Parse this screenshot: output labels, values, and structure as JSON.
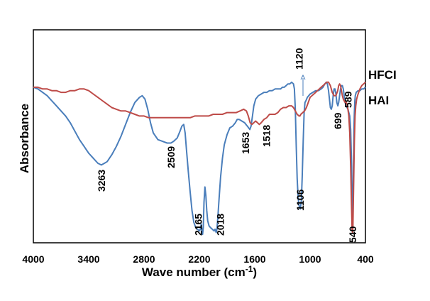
{
  "chart_data": {
    "type": "line",
    "title": "",
    "xlabel": "Wave number (cm",
    "xlabel_sup": "-1",
    "xlabel_close": ")",
    "ylabel": "Absorbance",
    "xlim": [
      4000,
      400
    ],
    "ylim": [
      0,
      1
    ],
    "x_reversed": true,
    "grid": false,
    "x_ticks": [
      4000,
      3400,
      2800,
      2200,
      1600,
      1000,
      400
    ],
    "x_tick_labels": [
      "4000",
      "3400",
      "2800",
      "2200",
      "1600",
      "1000",
      "400"
    ],
    "series": [
      {
        "name": "HFCI",
        "color": "#4a7ebb",
        "points": [
          [
            4000,
            0.87
          ],
          [
            3950,
            0.86
          ],
          [
            3900,
            0.84
          ],
          [
            3850,
            0.82
          ],
          [
            3800,
            0.79
          ],
          [
            3750,
            0.76
          ],
          [
            3700,
            0.73
          ],
          [
            3650,
            0.7
          ],
          [
            3600,
            0.66
          ],
          [
            3550,
            0.61
          ],
          [
            3500,
            0.56
          ],
          [
            3450,
            0.52
          ],
          [
            3400,
            0.48
          ],
          [
            3350,
            0.45
          ],
          [
            3300,
            0.42
          ],
          [
            3263,
            0.41
          ],
          [
            3230,
            0.42
          ],
          [
            3200,
            0.43
          ],
          [
            3150,
            0.47
          ],
          [
            3100,
            0.52
          ],
          [
            3050,
            0.58
          ],
          [
            3000,
            0.65
          ],
          [
            2950,
            0.72
          ],
          [
            2900,
            0.78
          ],
          [
            2850,
            0.81
          ],
          [
            2820,
            0.82
          ],
          [
            2790,
            0.8
          ],
          [
            2760,
            0.74
          ],
          [
            2730,
            0.66
          ],
          [
            2700,
            0.6
          ],
          [
            2650,
            0.56
          ],
          [
            2600,
            0.55
          ],
          [
            2550,
            0.54
          ],
          [
            2509,
            0.54
          ],
          [
            2480,
            0.55
          ],
          [
            2440,
            0.57
          ],
          [
            2410,
            0.61
          ],
          [
            2390,
            0.64
          ],
          [
            2370,
            0.65
          ],
          [
            2355,
            0.6
          ],
          [
            2340,
            0.5
          ],
          [
            2320,
            0.37
          ],
          [
            2300,
            0.25
          ],
          [
            2280,
            0.14
          ],
          [
            2260,
            0.07
          ],
          [
            2240,
            0.04
          ],
          [
            2220,
            0.03
          ],
          [
            2200,
            0.02
          ],
          [
            2190,
            0.03
          ],
          [
            2180,
            0.06
          ],
          [
            2170,
            0.01
          ],
          [
            2165,
            0.0
          ],
          [
            2158,
            0.04
          ],
          [
            2150,
            0.19
          ],
          [
            2140,
            0.28
          ],
          [
            2130,
            0.23
          ],
          [
            2120,
            0.14
          ],
          [
            2110,
            0.08
          ],
          [
            2095,
            0.05
          ],
          [
            2080,
            0.04
          ],
          [
            2060,
            0.03
          ],
          [
            2040,
            0.02
          ],
          [
            2030,
            0.03
          ],
          [
            2018,
            0.01
          ],
          [
            2010,
            0.03
          ],
          [
            2000,
            0.1
          ],
          [
            1985,
            0.22
          ],
          [
            1970,
            0.34
          ],
          [
            1950,
            0.45
          ],
          [
            1930,
            0.53
          ],
          [
            1900,
            0.59
          ],
          [
            1870,
            0.63
          ],
          [
            1840,
            0.64
          ],
          [
            1810,
            0.66
          ],
          [
            1790,
            0.68
          ],
          [
            1770,
            0.68
          ],
          [
            1740,
            0.67
          ],
          [
            1710,
            0.66
          ],
          [
            1680,
            0.64
          ],
          [
            1653,
            0.62
          ],
          [
            1640,
            0.64
          ],
          [
            1625,
            0.7
          ],
          [
            1610,
            0.76
          ],
          [
            1590,
            0.8
          ],
          [
            1560,
            0.82
          ],
          [
            1530,
            0.83
          ],
          [
            1500,
            0.84
          ],
          [
            1470,
            0.84
          ],
          [
            1440,
            0.85
          ],
          [
            1410,
            0.85
          ],
          [
            1380,
            0.86
          ],
          [
            1350,
            0.86
          ],
          [
            1320,
            0.86
          ],
          [
            1300,
            0.87
          ],
          [
            1280,
            0.87
          ],
          [
            1260,
            0.88
          ],
          [
            1240,
            0.89
          ],
          [
            1220,
            0.89
          ],
          [
            1200,
            0.9
          ],
          [
            1180,
            0.89
          ],
          [
            1170,
            0.86
          ],
          [
            1160,
            0.74
          ],
          [
            1150,
            0.52
          ],
          [
            1140,
            0.33
          ],
          [
            1130,
            0.22
          ],
          [
            1120,
            0.17
          ],
          [
            1106,
            0.15
          ],
          [
            1095,
            0.2
          ],
          [
            1085,
            0.34
          ],
          [
            1075,
            0.55
          ],
          [
            1065,
            0.72
          ],
          [
            1055,
            0.78
          ],
          [
            1045,
            0.79
          ],
          [
            1030,
            0.81
          ],
          [
            1000,
            0.83
          ],
          [
            970,
            0.84
          ],
          [
            940,
            0.85
          ],
          [
            910,
            0.85
          ],
          [
            880,
            0.86
          ],
          [
            860,
            0.87
          ],
          [
            840,
            0.89
          ],
          [
            825,
            0.9
          ],
          [
            812,
            0.89
          ],
          [
            800,
            0.85
          ],
          [
            790,
            0.8
          ],
          [
            780,
            0.75
          ],
          [
            770,
            0.74
          ],
          [
            760,
            0.76
          ],
          [
            750,
            0.82
          ],
          [
            740,
            0.86
          ],
          [
            730,
            0.86
          ],
          [
            720,
            0.83
          ],
          [
            710,
            0.78
          ],
          [
            699,
            0.76
          ],
          [
            690,
            0.78
          ],
          [
            680,
            0.82
          ],
          [
            670,
            0.86
          ],
          [
            660,
            0.88
          ],
          [
            650,
            0.88
          ],
          [
            640,
            0.86
          ],
          [
            630,
            0.82
          ],
          [
            620,
            0.78
          ],
          [
            610,
            0.76
          ],
          [
            589,
            0.74
          ],
          [
            580,
            0.72
          ],
          [
            570,
            0.7
          ],
          [
            560,
            0.62
          ],
          [
            550,
            0.4
          ],
          [
            543,
            0.1
          ],
          [
            540,
            0.04
          ],
          [
            536,
            0.1
          ],
          [
            530,
            0.4
          ],
          [
            525,
            0.62
          ],
          [
            520,
            0.72
          ],
          [
            515,
            0.79
          ],
          [
            510,
            0.82
          ],
          [
            500,
            0.84
          ],
          [
            480,
            0.85
          ],
          [
            460,
            0.85
          ],
          [
            440,
            0.86
          ],
          [
            420,
            0.86
          ],
          [
            400,
            0.87
          ]
        ]
      },
      {
        "name": "HAI",
        "color": "#be4b48",
        "points": [
          [
            4000,
            0.87
          ],
          [
            3950,
            0.87
          ],
          [
            3900,
            0.86
          ],
          [
            3850,
            0.86
          ],
          [
            3800,
            0.85
          ],
          [
            3750,
            0.85
          ],
          [
            3700,
            0.84
          ],
          [
            3650,
            0.84
          ],
          [
            3600,
            0.85
          ],
          [
            3550,
            0.85
          ],
          [
            3500,
            0.86
          ],
          [
            3450,
            0.86
          ],
          [
            3400,
            0.85
          ],
          [
            3350,
            0.83
          ],
          [
            3300,
            0.81
          ],
          [
            3250,
            0.79
          ],
          [
            3200,
            0.77
          ],
          [
            3150,
            0.75
          ],
          [
            3100,
            0.74
          ],
          [
            3050,
            0.73
          ],
          [
            3000,
            0.73
          ],
          [
            2950,
            0.72
          ],
          [
            2900,
            0.71
          ],
          [
            2850,
            0.7
          ],
          [
            2800,
            0.7
          ],
          [
            2750,
            0.69
          ],
          [
            2700,
            0.69
          ],
          [
            2650,
            0.69
          ],
          [
            2600,
            0.69
          ],
          [
            2550,
            0.69
          ],
          [
            2500,
            0.69
          ],
          [
            2450,
            0.69
          ],
          [
            2400,
            0.69
          ],
          [
            2350,
            0.69
          ],
          [
            2300,
            0.69
          ],
          [
            2250,
            0.7
          ],
          [
            2200,
            0.7
          ],
          [
            2150,
            0.7
          ],
          [
            2100,
            0.7
          ],
          [
            2050,
            0.71
          ],
          [
            2000,
            0.71
          ],
          [
            1950,
            0.71
          ],
          [
            1900,
            0.72
          ],
          [
            1850,
            0.72
          ],
          [
            1800,
            0.72
          ],
          [
            1760,
            0.73
          ],
          [
            1720,
            0.74
          ],
          [
            1690,
            0.73
          ],
          [
            1670,
            0.7
          ],
          [
            1650,
            0.66
          ],
          [
            1630,
            0.65
          ],
          [
            1610,
            0.66
          ],
          [
            1590,
            0.67
          ],
          [
            1570,
            0.66
          ],
          [
            1550,
            0.65
          ],
          [
            1530,
            0.66
          ],
          [
            1500,
            0.68
          ],
          [
            1470,
            0.69
          ],
          [
            1440,
            0.71
          ],
          [
            1410,
            0.71
          ],
          [
            1380,
            0.71
          ],
          [
            1350,
            0.72
          ],
          [
            1320,
            0.74
          ],
          [
            1290,
            0.75
          ],
          [
            1260,
            0.75
          ],
          [
            1230,
            0.76
          ],
          [
            1200,
            0.76
          ],
          [
            1180,
            0.75
          ],
          [
            1160,
            0.73
          ],
          [
            1140,
            0.71
          ],
          [
            1120,
            0.7
          ],
          [
            1110,
            0.7
          ],
          [
            1100,
            0.71
          ],
          [
            1080,
            0.72
          ],
          [
            1060,
            0.73
          ],
          [
            1040,
            0.75
          ],
          [
            1020,
            0.78
          ],
          [
            1000,
            0.81
          ],
          [
            980,
            0.82
          ],
          [
            960,
            0.83
          ],
          [
            940,
            0.84
          ],
          [
            920,
            0.85
          ],
          [
            900,
            0.86
          ],
          [
            880,
            0.87
          ],
          [
            860,
            0.88
          ],
          [
            840,
            0.89
          ],
          [
            820,
            0.9
          ],
          [
            800,
            0.9
          ],
          [
            780,
            0.88
          ],
          [
            760,
            0.84
          ],
          [
            740,
            0.82
          ],
          [
            720,
            0.82
          ],
          [
            700,
            0.85
          ],
          [
            690,
            0.88
          ],
          [
            680,
            0.89
          ],
          [
            670,
            0.88
          ],
          [
            660,
            0.85
          ],
          [
            650,
            0.82
          ],
          [
            640,
            0.8
          ],
          [
            630,
            0.79
          ],
          [
            620,
            0.78
          ],
          [
            610,
            0.78
          ],
          [
            600,
            0.77
          ],
          [
            590,
            0.74
          ],
          [
            580,
            0.7
          ],
          [
            570,
            0.6
          ],
          [
            560,
            0.4
          ],
          [
            550,
            0.15
          ],
          [
            545,
            0.03
          ],
          [
            540,
            0.01
          ],
          [
            535,
            0.05
          ],
          [
            528,
            0.3
          ],
          [
            520,
            0.55
          ],
          [
            512,
            0.7
          ],
          [
            505,
            0.76
          ],
          [
            495,
            0.8
          ],
          [
            480,
            0.83
          ],
          [
            460,
            0.86
          ],
          [
            440,
            0.88
          ],
          [
            420,
            0.89
          ],
          [
            400,
            0.9
          ]
        ]
      }
    ],
    "annotations": [
      {
        "text": "3263",
        "x": 3263
      },
      {
        "text": "2509",
        "x": 2509
      },
      {
        "text": "2165",
        "x": 2165
      },
      {
        "text": "2018",
        "x": 2018
      },
      {
        "text": "1653",
        "x": 1653
      },
      {
        "text": "1518",
        "x": 1518
      },
      {
        "text": "1106",
        "x": 1106
      },
      {
        "text": "1120",
        "x": 1120
      },
      {
        "text": "699",
        "x": 699
      },
      {
        "text": "589",
        "x": 589
      },
      {
        "text": "540",
        "x": 540
      }
    ],
    "legend": [
      "HFCI",
      "HAI"
    ]
  }
}
